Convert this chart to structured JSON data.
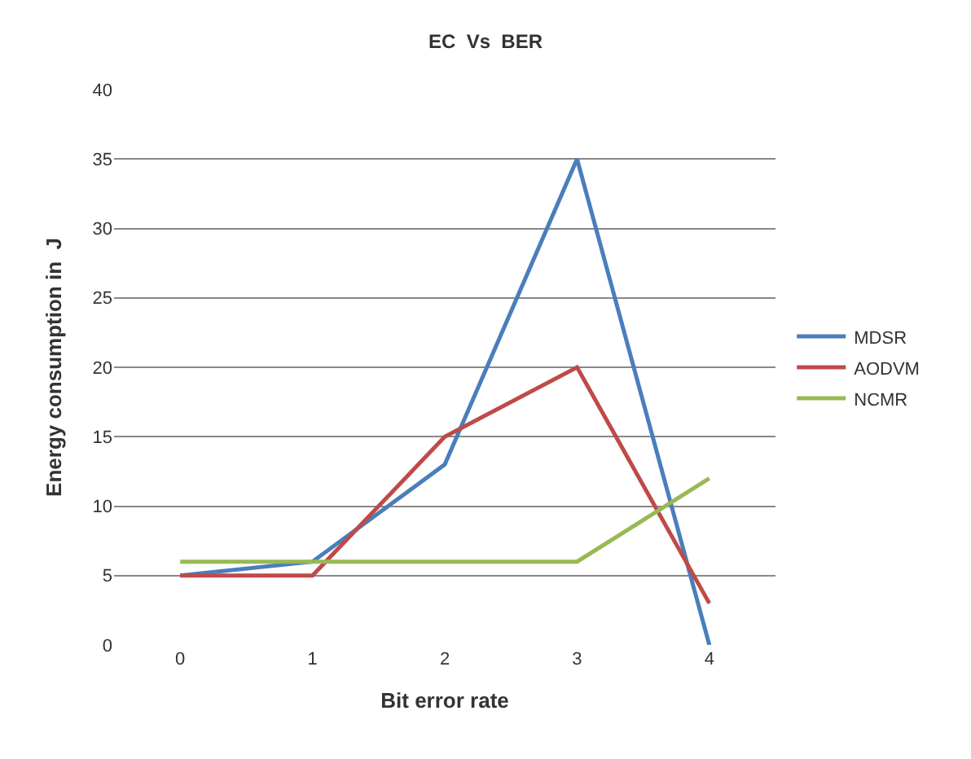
{
  "chart_data": {
    "type": "line",
    "title": "EC  Vs  BER",
    "xlabel": "Bit error rate",
    "ylabel": "Energy consumption in  J",
    "categories": [
      "0",
      "1",
      "2",
      "3",
      "4"
    ],
    "series": [
      {
        "name": "MDSR",
        "color": "#4a7ebb",
        "values": [
          5,
          6,
          13,
          35,
          0
        ]
      },
      {
        "name": "AODVM",
        "color": "#be4b48",
        "values": [
          5,
          5,
          15,
          20,
          3
        ]
      },
      {
        "name": "NCMR",
        "color": "#98b954",
        "values": [
          6,
          6,
          6,
          6,
          12
        ]
      }
    ],
    "ylim": [
      0,
      40
    ],
    "yticks": [
      0,
      5,
      10,
      15,
      20,
      25,
      30,
      35,
      40
    ],
    "grid": "y",
    "legend": "right",
    "marker": "none",
    "line_style": "solid"
  }
}
